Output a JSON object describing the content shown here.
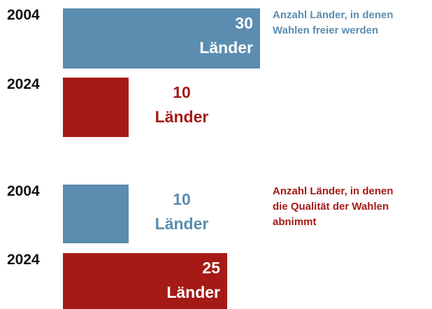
{
  "chart_data": [
    {
      "type": "hbar",
      "title": "Anzahl Länder, in denen Wahlen freier werden",
      "title_color": "#5b8db0",
      "categories": [
        "2004",
        "2024"
      ],
      "values": [
        30,
        10
      ],
      "value_labels": [
        "30 Länder",
        "10 Länder"
      ],
      "colors": [
        "#5b8db0",
        "#a51a16"
      ],
      "xlim": [
        0,
        30
      ]
    },
    {
      "type": "hbar",
      "title": "Anzahl Länder, in denen die Qualität der Wahlen abnimmt",
      "title_color": "#a51a16",
      "categories": [
        "2004",
        "2024"
      ],
      "values": [
        10,
        25
      ],
      "value_labels": [
        "10 Länder",
        "25 Länder"
      ],
      "colors": [
        "#5b8db0",
        "#a51a16"
      ],
      "xlim": [
        0,
        30
      ]
    }
  ]
}
